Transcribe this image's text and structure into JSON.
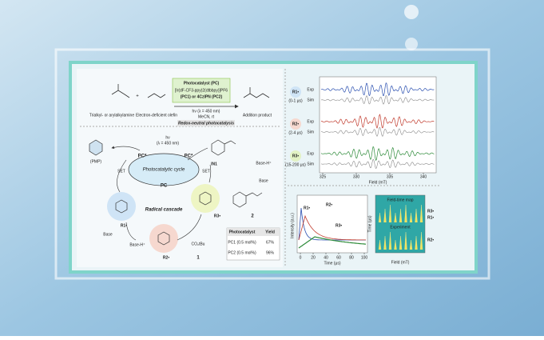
{
  "reaction": {
    "catalyst_title": "Photocatalyst (PC)",
    "catalyst_line1": "[Ir(dF-CF3-ppy)2(dtbbpy)]PF6",
    "catalyst_line2": "(PC1) or 4CzIPN (PC2)",
    "conditions_line1": "hν (λ = 450 nm)",
    "conditions_line2": "MeCN, rt",
    "mode": "Redox-neutral photocatalysis",
    "plus": "+",
    "reactant1": "Trialkyl- or arylalkylamine",
    "reactant2": "Electron-deficient olefin",
    "product": "Addition product"
  },
  "mechanism": {
    "light": "hν",
    "light_wavelength": "(λ = 450 nm)",
    "pc_excited": "PC*",
    "pc_top": "PC*",
    "pc": "PC",
    "cycle": "Photocatalytic cycle",
    "cascade": "Radical cascade",
    "set": "SET",
    "base": "Base",
    "base_h": "Base-H⁺",
    "intermediate": "IN1",
    "pmp": "(PMP)",
    "r1": "R1•",
    "r2": "R2•",
    "r3": "R3•",
    "olefin_number": "1",
    "product_number": "2",
    "ester": "CO₂tBu"
  },
  "yield_table": {
    "header": [
      "Photocatalyst",
      "Yield"
    ],
    "rows": [
      [
        "PC1 (0.5 mol%)",
        "67%"
      ],
      [
        "PC2 (0.5 mol%)",
        "96%"
      ]
    ]
  },
  "epr": {
    "radicals": [
      {
        "name": "R1•",
        "time": "(0-1 μs)"
      },
      {
        "name": "R2•",
        "time": "(2-4 μs)"
      },
      {
        "name": "R3•",
        "time": "(15-200 μs)"
      }
    ],
    "exp": "Exp",
    "sim": "Sim",
    "xlabel": "Field (mT)",
    "xticks": [
      "325",
      "330",
      "335",
      "340"
    ]
  },
  "kinetics": {
    "ylabel": "Intensity (a.u.)",
    "xlabel": "Time (μs)",
    "xticks": [
      "0",
      "20",
      "40",
      "60",
      "80",
      "100"
    ],
    "labels": [
      "R1•",
      "R2•",
      "R3•"
    ]
  },
  "map": {
    "title": "Field-time map",
    "subtitle": "Experiment",
    "xlabel": "Field (mT)",
    "ylabel": "Time (μs)",
    "labels": [
      "R3•",
      "R1•",
      "R2•"
    ]
  }
}
